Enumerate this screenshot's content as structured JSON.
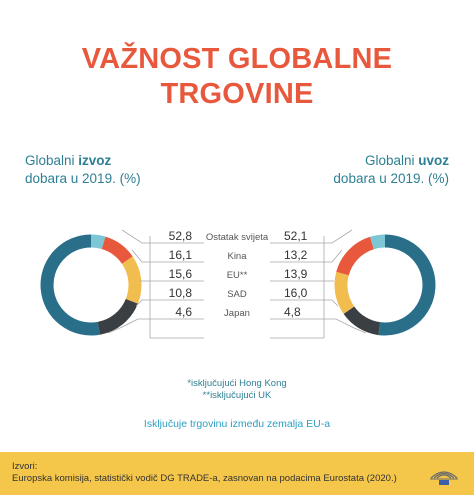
{
  "title_line1": "VAŽNOST GLOBALNE",
  "title_line2": "TRGOVINE",
  "export_label": {
    "prefix": "Globalni ",
    "highlight": "izvoz",
    "line2": "dobara u 2019. (%)"
  },
  "import_label": {
    "prefix": "Globalni ",
    "highlight": "uvoz",
    "line2": "dobara u 2019. (%)"
  },
  "chart_data": {
    "type": "pie",
    "style": "donut",
    "title": "VAŽNOST GLOBALNE TRGOVINE",
    "categories": [
      "Ostatak svijeta",
      "Kina",
      "EU",
      "SAD",
      "Japan"
    ],
    "category_labels": [
      "Ostatak svijeta",
      "Kina",
      "EU**",
      "SAD",
      "Japan"
    ],
    "series": [
      {
        "name": "Globalni izvoz dobara u 2019. (%)",
        "values": [
          52.8,
          16.1,
          15.6,
          10.8,
          4.6
        ],
        "labels": [
          "52,8",
          "16,1",
          "15,6",
          "10,8",
          "4,6"
        ]
      },
      {
        "name": "Globalni uvoz dobara u 2019. (%)",
        "values": [
          52.1,
          13.2,
          13.9,
          16.0,
          4.8
        ],
        "labels": [
          "52,1",
          "13,2",
          "13,9",
          "16,0",
          "4,8"
        ]
      }
    ],
    "colors": [
      "#2a6f8a",
      "#3a3f44",
      "#f1bd4e",
      "#e8583c",
      "#7cc6d6"
    ]
  },
  "footnotes": [
    "*isključujući Hong Kong",
    "**isključujući UK"
  ],
  "note": "Isključuje trgovinu između zemalja EU-a",
  "source_label": "Izvori:",
  "source_text": "Europska komisija, statistički vodič DG TRADE-a, zasnovan na podacima Eurostata (2020.)",
  "logo_icon": "eu-parliament-logo-icon"
}
